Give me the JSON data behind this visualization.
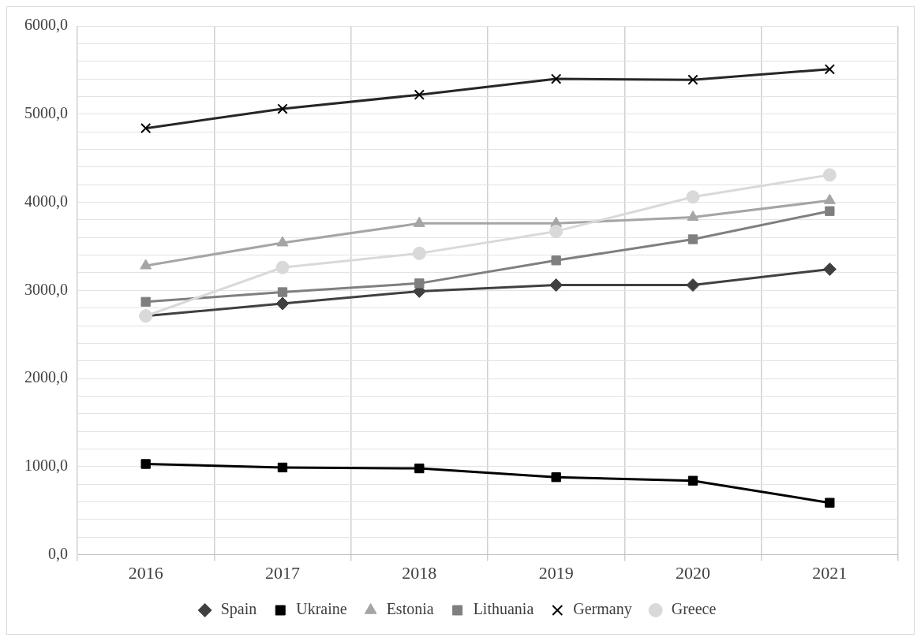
{
  "chart_data": {
    "type": "line",
    "categories": [
      "2016",
      "2017",
      "2018",
      "2019",
      "2020",
      "2021"
    ],
    "series": [
      {
        "name": "Spain",
        "color": "#404040",
        "marker": "diamond",
        "values": [
          2710,
          2850,
          2990,
          3060,
          3060,
          3240
        ]
      },
      {
        "name": "Ukraine",
        "color": "#000000",
        "marker": "square",
        "values": [
          1030,
          990,
          980,
          880,
          840,
          590
        ]
      },
      {
        "name": "Estonia",
        "color": "#a5a5a5",
        "marker": "triangle",
        "values": [
          3280,
          3540,
          3760,
          3760,
          3830,
          4020
        ]
      },
      {
        "name": "Lithuania",
        "color": "#7f7f7f",
        "marker": "square",
        "values": [
          2870,
          2980,
          3080,
          3340,
          3580,
          3900
        ]
      },
      {
        "name": "Germany",
        "color": "#262626",
        "marker": "cross",
        "values": [
          4840,
          5060,
          5220,
          5400,
          5390,
          5510
        ]
      },
      {
        "name": "Greece",
        "color": "#d9d9d9",
        "marker": "circle",
        "values": [
          2710,
          3260,
          3420,
          3670,
          4060,
          4310
        ]
      }
    ],
    "ylim": [
      0,
      6000
    ],
    "yticks": [
      {
        "value": 0,
        "label": "0,0"
      },
      {
        "value": 200,
        "label": null
      },
      {
        "value": 400,
        "label": null
      },
      {
        "value": 600,
        "label": null
      },
      {
        "value": 800,
        "label": null
      },
      {
        "value": 1000,
        "label": "1000,0"
      },
      {
        "value": 1200,
        "label": null
      },
      {
        "value": 1400,
        "label": null
      },
      {
        "value": 1600,
        "label": null
      },
      {
        "value": 1800,
        "label": null
      },
      {
        "value": 2000,
        "label": "2000,0"
      },
      {
        "value": 2200,
        "label": null
      },
      {
        "value": 2400,
        "label": null
      },
      {
        "value": 2600,
        "label": null
      },
      {
        "value": 2800,
        "label": null
      },
      {
        "value": 3000,
        "label": "3000,0"
      },
      {
        "value": 3200,
        "label": null
      },
      {
        "value": 3400,
        "label": null
      },
      {
        "value": 3600,
        "label": null
      },
      {
        "value": 3800,
        "label": null
      },
      {
        "value": 4000,
        "label": "4000,0"
      },
      {
        "value": 4200,
        "label": null
      },
      {
        "value": 4400,
        "label": null
      },
      {
        "value": 4600,
        "label": null
      },
      {
        "value": 4800,
        "label": null
      },
      {
        "value": 5000,
        "label": "5000,0"
      },
      {
        "value": 5200,
        "label": null
      },
      {
        "value": 5400,
        "label": null
      },
      {
        "value": 5600,
        "label": null
      },
      {
        "value": 5800,
        "label": null
      },
      {
        "value": 6000,
        "label": "6000,0"
      }
    ],
    "grid": true,
    "legend": "bottom",
    "line_style": "solid"
  }
}
